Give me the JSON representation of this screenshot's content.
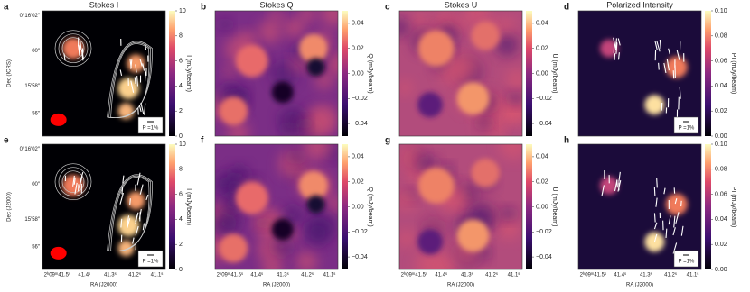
{
  "columns": [
    {
      "title": "Stokes I",
      "colorbar": {
        "label": "I (mJy/beam)",
        "lim": [
          0,
          10
        ],
        "ticks": [
          0,
          2,
          4,
          6,
          8,
          10
        ]
      }
    },
    {
      "title": "Stokes Q",
      "colorbar": {
        "label": "Q (mJy/beam)",
        "lim": [
          -0.05,
          0.05
        ],
        "ticks": [
          {
            "value": -0.04,
            "label": "−0.04"
          },
          {
            "value": -0.02,
            "label": "−0.02"
          },
          {
            "value": 0,
            "label": "0.00"
          },
          0.02,
          0.04
        ]
      }
    },
    {
      "title": "Stokes U",
      "colorbar": {
        "label": "U (mJy/beam)",
        "lim": [
          -0.05,
          0.05
        ],
        "ticks": [
          {
            "value": -0.04,
            "label": "−0.04"
          },
          {
            "value": -0.02,
            "label": "−0.02"
          },
          {
            "value": 0,
            "label": "0.00"
          },
          0.02,
          0.04
        ]
      }
    },
    {
      "title": "Polarized Intensity",
      "colorbar": {
        "label": "PI (mJy/beam)",
        "lim": [
          0,
          0.1
        ],
        "ticks": [
          {
            "value": 0,
            "label": "0.00"
          },
          0.02,
          0.04,
          0.06,
          0.08,
          {
            "value": 0.1,
            "label": "0.10"
          }
        ]
      }
    }
  ],
  "rows": [
    {
      "letters": [
        "a",
        "b",
        "c",
        "d"
      ],
      "dec_label": "Dec (ICRS)"
    },
    {
      "letters": [
        "e",
        "f",
        "g",
        "h"
      ],
      "dec_label": "Dec (J2000)"
    }
  ],
  "dec_ticks": [
    "0°16′02″",
    "00″",
    "15′58″",
    "56″"
  ],
  "ra_ticks": [
    "2ʰ09ᵐ41.5ˢ",
    "41.4ˢ",
    "41.3ˢ",
    "41.2ˢ",
    "41.1ˢ"
  ],
  "ra_label": "RA (J2000)",
  "pol_scale_label": "P =1%"
}
